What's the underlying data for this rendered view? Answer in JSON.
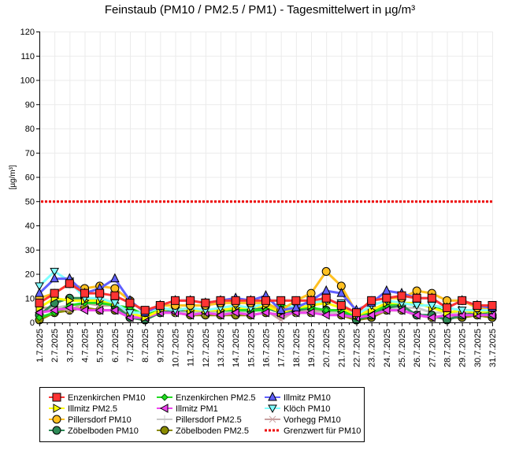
{
  "chart_data": {
    "type": "line",
    "title": "Feinstaub (PM10 / PM2.5 / PM1) -  Tagesmittelwert in µg/m³",
    "xlabel": "",
    "ylabel": "[µg/m³]",
    "ylim": [
      0,
      120
    ],
    "yticks": [
      0,
      10,
      20,
      30,
      40,
      50,
      60,
      70,
      80,
      90,
      100,
      110,
      120
    ],
    "grid": true,
    "legend_position": "bottom",
    "categories": [
      "1.7.2025",
      "2.7.2025",
      "3.7.2025",
      "4.7.2025",
      "5.7.2025",
      "6.7.2025",
      "7.7.2025",
      "8.7.2025",
      "9.7.2025",
      "10.7.2025",
      "11.7.2025",
      "12.7.2025",
      "13.7.2025",
      "14.7.2025",
      "15.7.2025",
      "16.7.2025",
      "17.7.2025",
      "18.7.2025",
      "19.7.2025",
      "20.7.2025",
      "21.7.2025",
      "22.7.2025",
      "23.7.2025",
      "24.7.2025",
      "25.7.2025",
      "26.7.2025",
      "27.7.2025",
      "28.7.2025",
      "29.7.2025",
      "30.7.2025",
      "31.7.2025"
    ],
    "series": [
      {
        "name": "Zöbelboden PM2.5",
        "color": "#8b8b00",
        "marker": "circle-dark",
        "values": [
          1,
          4,
          5,
          6,
          5,
          5,
          2,
          1,
          4,
          4,
          3,
          3,
          3,
          3,
          3,
          4,
          3,
          4,
          4,
          5,
          3,
          1,
          2,
          5,
          5,
          3,
          2,
          2,
          2,
          3,
          2
        ]
      },
      {
        "name": "Vorhegg PM10",
        "color": "#c8a0a0",
        "marker": "x",
        "values": [
          6,
          6,
          5,
          8,
          7,
          7,
          2,
          2,
          5,
          5,
          5,
          4,
          5,
          5,
          5,
          5,
          1,
          5,
          5,
          5,
          4,
          4,
          6,
          6,
          5,
          3,
          2,
          2,
          3,
          5,
          5
        ]
      },
      {
        "name": "Pillersdorf PM2.5",
        "color": "#c8c8c8",
        "marker": "plus",
        "values": [
          4,
          6,
          7,
          8,
          8,
          7,
          3,
          2,
          4,
          4,
          4,
          4,
          4,
          4,
          4,
          6,
          4,
          4,
          4,
          4,
          4,
          3,
          4,
          6,
          6,
          6,
          4,
          4,
          4,
          4,
          3
        ]
      },
      {
        "name": "Zöbelboden PM10",
        "color": "#2e8b57",
        "marker": "circle-green",
        "values": [
          3,
          8,
          10,
          10,
          9,
          7,
          2,
          1,
          4,
          5,
          5,
          5,
          5,
          5,
          5,
          6,
          4,
          5,
          6,
          5,
          5,
          1,
          3,
          6,
          7,
          3,
          3,
          1,
          3,
          4,
          3
        ]
      },
      {
        "name": "Enzenkirchen PM2.5",
        "color": "#22dd22",
        "marker": "diamond",
        "values": [
          2,
          4,
          7,
          8,
          8,
          7,
          6,
          3,
          5,
          6,
          5,
          5,
          5,
          5,
          5,
          5,
          7,
          6,
          6,
          5,
          5,
          2,
          4,
          7,
          8,
          7,
          7,
          4,
          5,
          5,
          4
        ]
      },
      {
        "name": "Illmitz PM1",
        "color": "#ee44ee",
        "marker": "tri-left",
        "values": [
          4,
          5,
          6,
          5,
          5,
          5,
          2,
          2,
          4,
          4,
          3,
          4,
          3,
          4,
          3,
          4,
          3,
          4,
          4,
          3,
          3,
          2,
          3,
          5,
          5,
          3,
          2,
          3,
          3,
          3,
          3
        ]
      },
      {
        "name": "Illmitz PM2.5",
        "color": "#ffff00",
        "marker": "tri-right",
        "values": [
          6,
          10,
          9,
          9,
          9,
          8,
          4,
          2,
          5,
          6,
          5,
          5,
          5,
          6,
          6,
          7,
          4,
          6,
          7,
          8,
          6,
          3,
          5,
          8,
          8,
          8,
          6,
          4,
          5,
          4,
          5
        ]
      },
      {
        "name": "Klöch PM10",
        "color": "#80ffff",
        "marker": "tri-down",
        "values": [
          15,
          21,
          17,
          10,
          10,
          8,
          4,
          4,
          6,
          5,
          6,
          5,
          6,
          7,
          6,
          8,
          5,
          7,
          8,
          9,
          8,
          3,
          7,
          9,
          8,
          7,
          7,
          6,
          5,
          5,
          5
        ]
      },
      {
        "name": "Pillersdorf PM10",
        "color": "#ffc020",
        "marker": "circle-yellow",
        "values": [
          10,
          12,
          16,
          14,
          15,
          14,
          9,
          4,
          7,
          7,
          7,
          7,
          8,
          8,
          8,
          8,
          5,
          9,
          12,
          21,
          15,
          4,
          9,
          10,
          10,
          13,
          12,
          9,
          9,
          6,
          6
        ]
      },
      {
        "name": "Illmitz PM10",
        "color": "#6060ff",
        "marker": "tri-up",
        "values": [
          12,
          18,
          18,
          12,
          14,
          18,
          9,
          4,
          7,
          9,
          9,
          8,
          9,
          10,
          9,
          11,
          5,
          6,
          9,
          13,
          12,
          5,
          8,
          13,
          12,
          10,
          10,
          6,
          9,
          7,
          6
        ]
      },
      {
        "name": "Enzenkirchen PM10",
        "color": "#ff3333",
        "marker": "square",
        "values": [
          8,
          12,
          16,
          12,
          12,
          11,
          8,
          5,
          7,
          9,
          9,
          8,
          9,
          9,
          9,
          9,
          9,
          9,
          9,
          10,
          7,
          4,
          9,
          10,
          11,
          10,
          10,
          6,
          9,
          7,
          7
        ]
      }
    ],
    "threshold": {
      "name": "Grenzwert für PM10",
      "value": 50,
      "color": "#ee0000"
    },
    "legend": [
      "Enzenkirchen PM10",
      "Enzenkirchen PM2.5",
      "Illmitz PM10",
      "Illmitz PM2.5",
      "Illmitz PM1",
      "Klöch PM10",
      "Pillersdorf PM10",
      "Pillersdorf PM2.5",
      "Vorhegg PM10",
      "Zöbelboden PM10",
      "Zöbelboden PM2.5",
      "Grenzwert für PM10"
    ]
  }
}
